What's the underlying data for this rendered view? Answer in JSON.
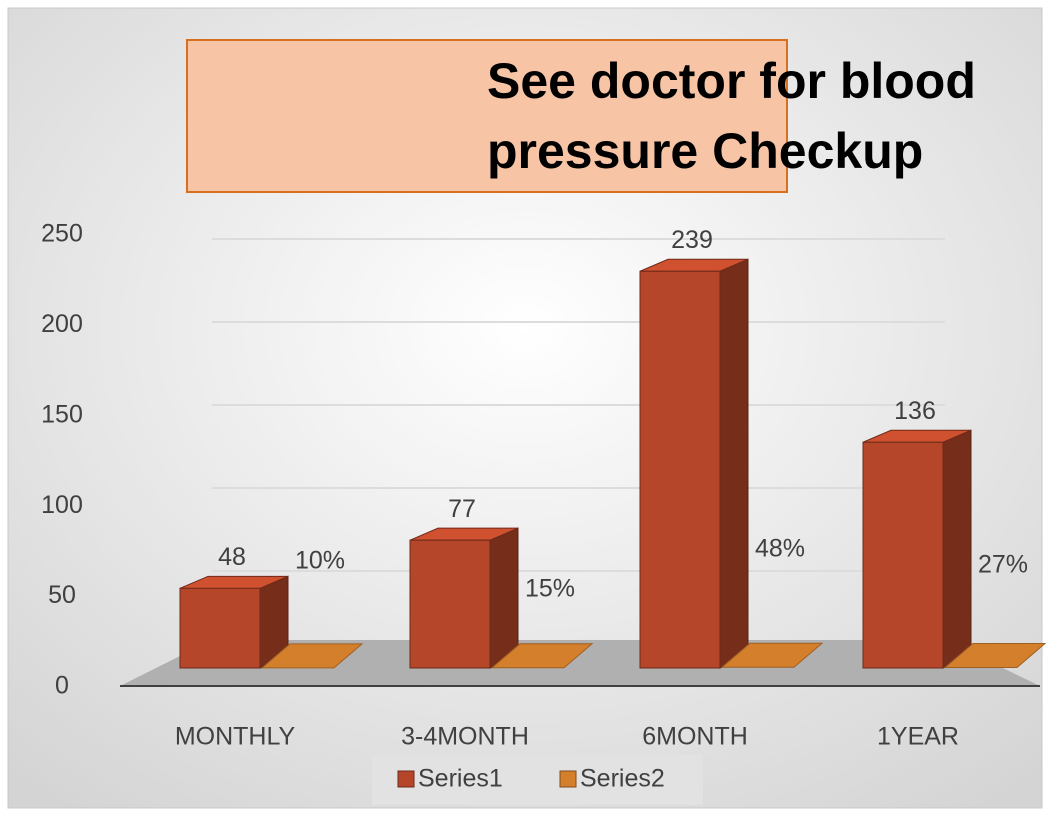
{
  "chart_data": {
    "type": "bar3d",
    "title": "See doctor for blood pressure Checkup",
    "categories": [
      "MONTHLY",
      "3-4MONTH",
      "6MONTH",
      "1YEAR"
    ],
    "series": [
      {
        "name": "Series1",
        "color": "#b5462a",
        "values": [
          48,
          77,
          239,
          136
        ]
      },
      {
        "name": "Series2",
        "color": "#d47f2c",
        "values": [
          0.1,
          0.15,
          0.48,
          0.27
        ],
        "value_labels": [
          "10%",
          "15%",
          "48%",
          "27%"
        ]
      }
    ],
    "ylim": [
      0,
      250
    ],
    "yticks": [
      0,
      50,
      100,
      150,
      200,
      250
    ],
    "grid": true,
    "legend": "bottom"
  }
}
